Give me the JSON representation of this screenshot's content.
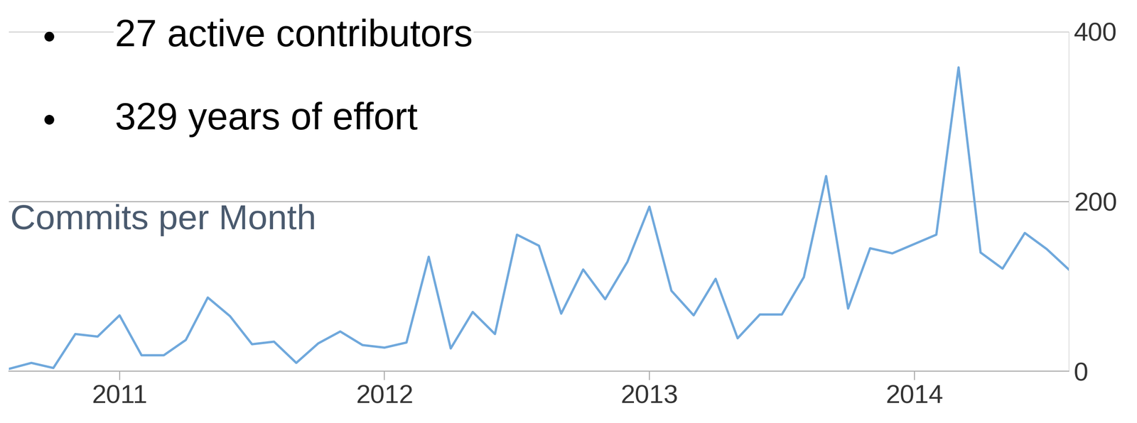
{
  "bullets": [
    "27 active contributors",
    "329 years of effort"
  ],
  "chart_data": {
    "type": "line",
    "title": "Commits per Month",
    "x": [
      2010.583,
      2010.667,
      2010.75,
      2010.833,
      2010.917,
      2011.0,
      2011.083,
      2011.167,
      2011.25,
      2011.333,
      2011.417,
      2011.5,
      2011.583,
      2011.667,
      2011.75,
      2011.833,
      2011.917,
      2012.0,
      2012.083,
      2012.167,
      2012.25,
      2012.333,
      2012.417,
      2012.5,
      2012.583,
      2012.667,
      2012.75,
      2012.833,
      2012.917,
      2013.0,
      2013.083,
      2013.167,
      2013.25,
      2013.333,
      2013.417,
      2013.5,
      2013.583,
      2013.667,
      2013.75,
      2013.833,
      2013.917,
      2014.0,
      2014.083,
      2014.167,
      2014.25,
      2014.333,
      2014.417,
      2014.5,
      2014.583
    ],
    "values": [
      3,
      10,
      4,
      44,
      41,
      66,
      19,
      19,
      37,
      87,
      65,
      32,
      35,
      10,
      33,
      47,
      31,
      28,
      34,
      135,
      27,
      70,
      44,
      161,
      148,
      68,
      120,
      85,
      129,
      194,
      95,
      66,
      109,
      39,
      67,
      67,
      111,
      230,
      74,
      145,
      139,
      150,
      161,
      358,
      140,
      121,
      163,
      144,
      120
    ],
    "color": "#6fa8dc",
    "xlim": [
      2010.583,
      2014.583
    ],
    "xticks": [
      2011,
      2012,
      2013,
      2014
    ],
    "ylim": [
      0,
      400
    ],
    "yticks": [
      0,
      200,
      400
    ],
    "grid": true
  }
}
